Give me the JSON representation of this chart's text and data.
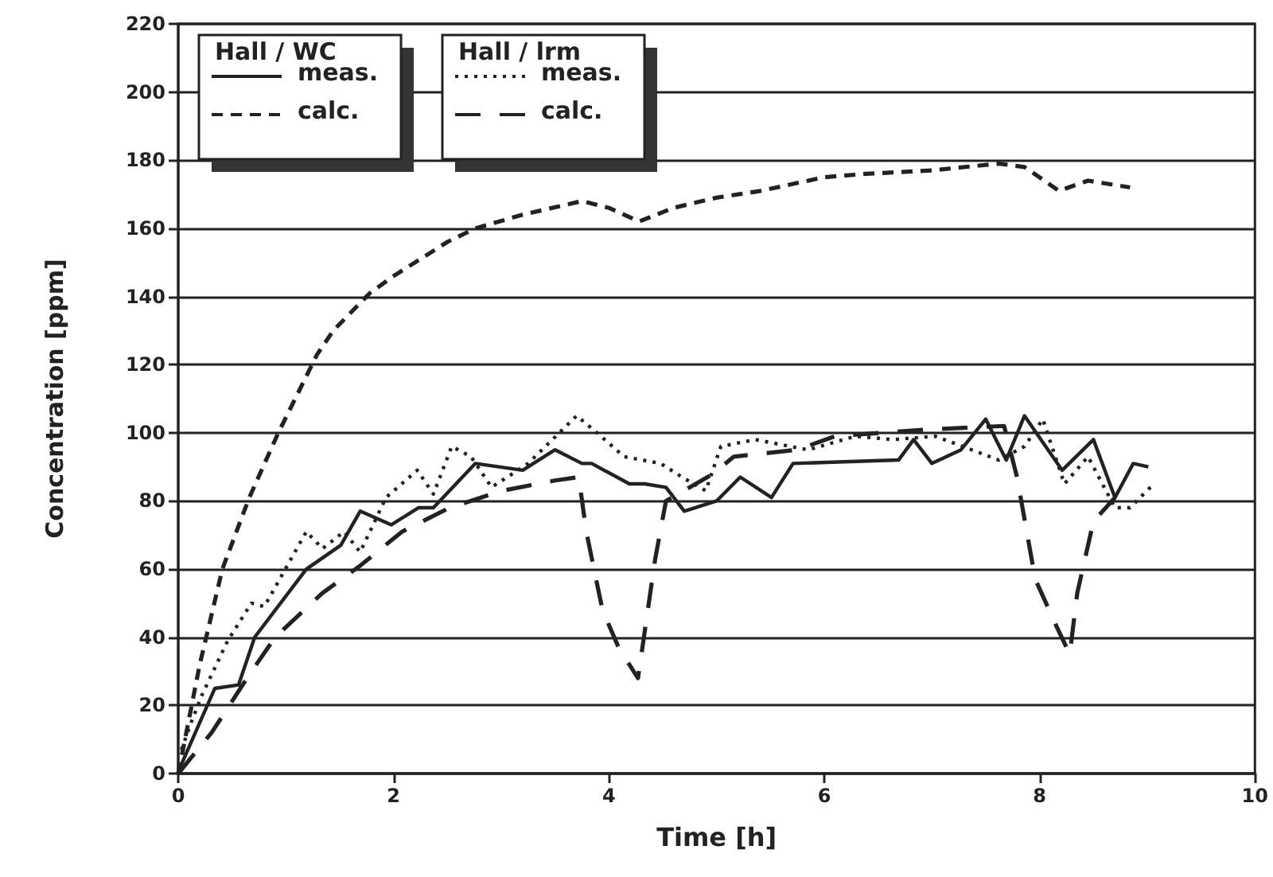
{
  "chart_data": {
    "type": "line",
    "xlabel": "Time [h]",
    "ylabel": "Concentration [ppm]",
    "annotations": [
      "Hall / WC",
      "Hall / lrm"
    ],
    "xlim": [
      0,
      10
    ],
    "xticks": [
      0,
      2,
      4,
      6,
      8,
      10
    ],
    "ylim": [
      0,
      220
    ],
    "yticks": [
      0,
      20,
      40,
      60,
      80,
      100,
      120,
      140,
      160,
      180,
      200,
      220
    ],
    "grid": "y",
    "legend": "top left",
    "marker": "none",
    "series": [
      {
        "name": "meas.",
        "color": "#222222",
        "line_style": "solid",
        "x": [
          0.02,
          0.34,
          0.56,
          0.71,
          1.19,
          1.51,
          1.69,
          1.98,
          2.23,
          2.37,
          2.76,
          3.2,
          3.5,
          3.75,
          3.84,
          4.19,
          4.33,
          4.53,
          4.7,
          5.0,
          5.22,
          5.51,
          5.71,
          6.69,
          6.83,
          7.0,
          7.27,
          7.5,
          7.69,
          7.86,
          8.21,
          8.5,
          8.7,
          8.87,
          9.01
        ],
        "values": [
          2,
          25,
          26,
          40,
          60,
          67,
          77,
          73,
          78,
          78,
          91,
          89,
          95,
          91,
          91,
          85,
          85,
          84,
          77,
          80,
          87,
          81,
          91,
          92,
          98,
          91,
          95,
          104,
          92,
          105,
          89,
          98,
          81,
          91,
          90
        ]
      },
      {
        "name": "calc.",
        "color": "#222222",
        "line_style": "dashed",
        "x": [
          0,
          0.2,
          0.41,
          0.66,
          0.93,
          1.29,
          1.44,
          1.78,
          2,
          2.5,
          2.76,
          3.2,
          3.75,
          4,
          4.28,
          4.6,
          5,
          5.41,
          6,
          6.39,
          7,
          7.62,
          7.86,
          8.18,
          8.45,
          8.84
        ],
        "values": [
          0,
          32,
          60,
          81,
          100,
          123,
          130,
          141,
          146,
          156,
          160,
          164,
          168,
          166,
          162,
          166,
          169,
          171,
          175,
          176,
          177,
          179,
          178,
          171,
          174,
          172
        ]
      },
      {
        "name": "meas.",
        "color": "#222222",
        "line_style": "dotted",
        "x": [
          0.03,
          0.12,
          0.22,
          0.46,
          0.68,
          0.8,
          1.19,
          1.34,
          1.54,
          1.69,
          1.93,
          2.22,
          2.37,
          2.54,
          2.72,
          2.91,
          3.25,
          3.7,
          3.89,
          4.14,
          4.48,
          4.68,
          4.9,
          5.04,
          5.36,
          5.85,
          6.29,
          6.64,
          7.03,
          7.37,
          7.62,
          7.86,
          8.03,
          8.23,
          8.45,
          8.7,
          8.84,
          9.06
        ],
        "values": [
          7,
          15,
          23,
          39,
          50,
          49,
          71,
          66,
          71,
          65,
          81,
          89,
          82,
          96,
          93,
          84,
          91,
          105,
          100,
          93,
          91,
          87,
          83,
          96,
          98,
          95,
          99,
          98,
          99,
          95,
          92,
          96,
          104,
          85,
          93,
          78,
          78,
          85
        ]
      },
      {
        "name": "calc.",
        "color": "#222222",
        "line_style": "dashed",
        "x": [
          0,
          0.31,
          0.66,
          0.9,
          1.34,
          1.69,
          2.08,
          2.52,
          3.01,
          3.5,
          3.72,
          3.79,
          3.94,
          4.09,
          4.27,
          4.43,
          4.53,
          4.97,
          5.16,
          5.75,
          6.1,
          6.98,
          7.67,
          7.79,
          7.96,
          8.16,
          8.28,
          8.35,
          8.5,
          8.7
        ],
        "values": [
          0,
          12,
          29,
          40,
          53,
          61,
          71,
          78,
          83,
          86,
          87,
          71,
          48,
          37,
          28,
          63,
          80,
          88,
          93,
          95,
          99,
          101,
          102,
          87,
          57,
          43,
          35,
          53,
          74,
          81
        ]
      }
    ]
  }
}
